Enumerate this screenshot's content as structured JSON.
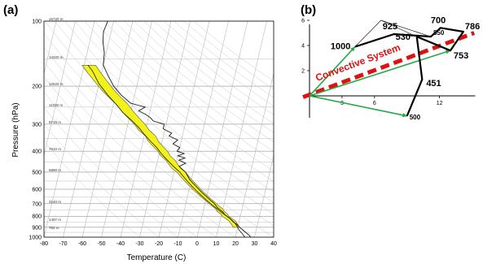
{
  "chart_data": [
    {
      "type": "line",
      "panel_label": "(a)",
      "xlabel": "Temperature   (C)",
      "ylabel": "Pressure   (hPa)",
      "xlim": [
        -80,
        40
      ],
      "ylim": [
        1000,
        100
      ],
      "y_scale": "log",
      "x_ticks": [
        "-80",
        "-70",
        "-60",
        "-50",
        "-40",
        "-30",
        "-20",
        "-10",
        "0",
        "10",
        "20",
        "30",
        "40"
      ],
      "y_ticks": [
        "100",
        "200",
        "300",
        "400",
        "500",
        "600",
        "700",
        "800",
        "900",
        "1000"
      ],
      "altitude_labels": [
        {
          "p": 100,
          "text": "16720 m"
        },
        {
          "p": 150,
          "text": "14320 m"
        },
        {
          "p": 200,
          "text": "12520 m"
        },
        {
          "p": 250,
          "text": "11030 m"
        },
        {
          "p": 300,
          "text": "9710 m"
        },
        {
          "p": 400,
          "text": "7610 m"
        },
        {
          "p": 500,
          "text": "5890 m"
        },
        {
          "p": 700,
          "text": "3140 m"
        },
        {
          "p": 850,
          "text": "1497 m"
        },
        {
          "p": 925,
          "text": "762 m"
        }
      ],
      "grid": true,
      "series": [
        {
          "role": "temperature",
          "color": "#1a1a1a",
          "points": [
            [
              28,
              1000
            ],
            [
              27,
              980
            ],
            [
              24,
              940
            ],
            [
              21,
              900
            ],
            [
              19,
              870
            ],
            [
              17,
              850
            ],
            [
              15,
              820
            ],
            [
              12,
              790
            ],
            [
              10,
              760
            ],
            [
              7,
              730
            ],
            [
              5,
              700
            ],
            [
              3,
              680
            ],
            [
              0,
              650
            ],
            [
              -3,
              620
            ],
            [
              -6,
              590
            ],
            [
              -9,
              560
            ],
            [
              -11,
              540
            ],
            [
              -14,
              500
            ],
            [
              -16,
              485
            ],
            [
              -18,
              470
            ],
            [
              -15,
              455
            ],
            [
              -19,
              440
            ],
            [
              -16,
              430
            ],
            [
              -20,
              420
            ],
            [
              -17,
              410
            ],
            [
              -21,
              400
            ],
            [
              -20,
              385
            ],
            [
              -24,
              370
            ],
            [
              -22,
              355
            ],
            [
              -27,
              340
            ],
            [
              -26,
              330
            ],
            [
              -31,
              315
            ],
            [
              -31,
              300
            ],
            [
              -37,
              290
            ],
            [
              -39,
              280
            ],
            [
              -42,
              270
            ],
            [
              -46,
              260
            ],
            [
              -43,
              250
            ],
            [
              -47,
              245
            ],
            [
              -51,
              240
            ],
            [
              -57,
              220
            ],
            [
              -62,
              200
            ],
            [
              -66,
              180
            ],
            [
              -70,
              160
            ],
            [
              -71,
              140
            ],
            [
              -73,
              125
            ],
            [
              -74,
              112
            ],
            [
              -73,
              100
            ]
          ]
        },
        {
          "role": "parcel",
          "color": "#1a1a1a",
          "points": [
            [
              25,
              1000
            ],
            [
              23,
              960
            ],
            [
              21,
              925
            ],
            [
              20,
              900
            ],
            [
              18,
              860
            ],
            [
              15,
              820
            ],
            [
              11,
              780
            ],
            [
              7,
              740
            ],
            [
              3,
              700
            ],
            [
              0,
              670
            ],
            [
              -3,
              640
            ],
            [
              -6,
              610
            ],
            [
              -9,
              580
            ],
            [
              -12,
              550
            ],
            [
              -15,
              520
            ],
            [
              -17,
              500
            ],
            [
              -21,
              470
            ],
            [
              -25,
              440
            ],
            [
              -29,
              410
            ],
            [
              -32,
              385
            ],
            [
              -36,
              360
            ],
            [
              -40,
              335
            ],
            [
              -44,
              310
            ],
            [
              -48,
              290
            ],
            [
              -54,
              265
            ],
            [
              -58,
              245
            ],
            [
              -64,
              220
            ],
            [
              -70,
              195
            ],
            [
              -75,
              170
            ],
            [
              -78,
              160
            ]
          ]
        },
        {
          "role": "cape",
          "color": "#f2f21a",
          "points": [
            [
              21,
              900
            ],
            [
              20,
              880
            ],
            [
              19,
              860
            ],
            [
              18,
              840
            ],
            [
              16,
              820
            ],
            [
              14,
              800
            ],
            [
              13,
              780
            ],
            [
              11,
              760
            ],
            [
              10,
              740
            ],
            [
              8,
              720
            ],
            [
              6,
              700
            ],
            [
              4,
              680
            ],
            [
              2,
              660
            ],
            [
              0,
              640
            ],
            [
              -2,
              620
            ],
            [
              -4,
              600
            ],
            [
              -6,
              580
            ],
            [
              -8,
              560
            ],
            [
              -10,
              540
            ],
            [
              -12,
              520
            ],
            [
              -14,
              500
            ],
            [
              -17,
              480
            ],
            [
              -19,
              460
            ],
            [
              -21,
              440
            ],
            [
              -24,
              420
            ],
            [
              -26,
              400
            ],
            [
              -29,
              380
            ],
            [
              -32,
              360
            ],
            [
              -34,
              340
            ],
            [
              -38,
              320
            ],
            [
              -41,
              300
            ],
            [
              -45,
              280
            ],
            [
              -49,
              260
            ],
            [
              -53,
              240
            ],
            [
              -57,
              225
            ],
            [
              -61,
              210
            ],
            [
              -66,
              190
            ],
            [
              -70,
              175
            ],
            [
              -74,
              160
            ]
          ]
        }
      ]
    },
    {
      "type": "line",
      "panel_label": "(b)",
      "x_ticks": [
        "3",
        "6",
        "12"
      ],
      "y_ticks": [
        "2",
        "4",
        "6"
      ],
      "xlim": [
        0,
        15
      ],
      "ylim": [
        -3,
        6
      ],
      "annotation": "Convective System",
      "hodograph": [
        {
          "label": "1000",
          "x": 4.2,
          "y": 3.9
        },
        {
          "label": "925",
          "x": 7.8,
          "y": 4.9
        },
        {
          "label": "850",
          "x": 11.2,
          "y": 4.7
        },
        {
          "label": "700",
          "x": 12.1,
          "y": 5.4
        },
        {
          "label": "786",
          "x": 14.2,
          "y": 5.1
        },
        {
          "label": "753",
          "x": 13.0,
          "y": 3.6
        },
        {
          "label": "530",
          "x": 9.9,
          "y": 4.7
        },
        {
          "label": "451",
          "x": 10.4,
          "y": 1.3
        },
        {
          "label": "500",
          "x": 9.0,
          "y": -1.6
        }
      ],
      "shear_vectors": [
        {
          "from": [
            0,
            0
          ],
          "to": [
            4.2,
            3.9
          ],
          "color": "#22aa44"
        },
        {
          "from": [
            0,
            0
          ],
          "to": [
            9.0,
            -1.6
          ],
          "color": "#22aa44"
        },
        {
          "from": [
            0,
            0
          ],
          "to": [
            13.0,
            3.6
          ],
          "color": "#22aa44"
        }
      ],
      "storm_motion_line": {
        "from": [
          -0.6,
          -0.1
        ],
        "to": [
          15.2,
          5.0
        ],
        "color": "#e01010"
      }
    }
  ]
}
